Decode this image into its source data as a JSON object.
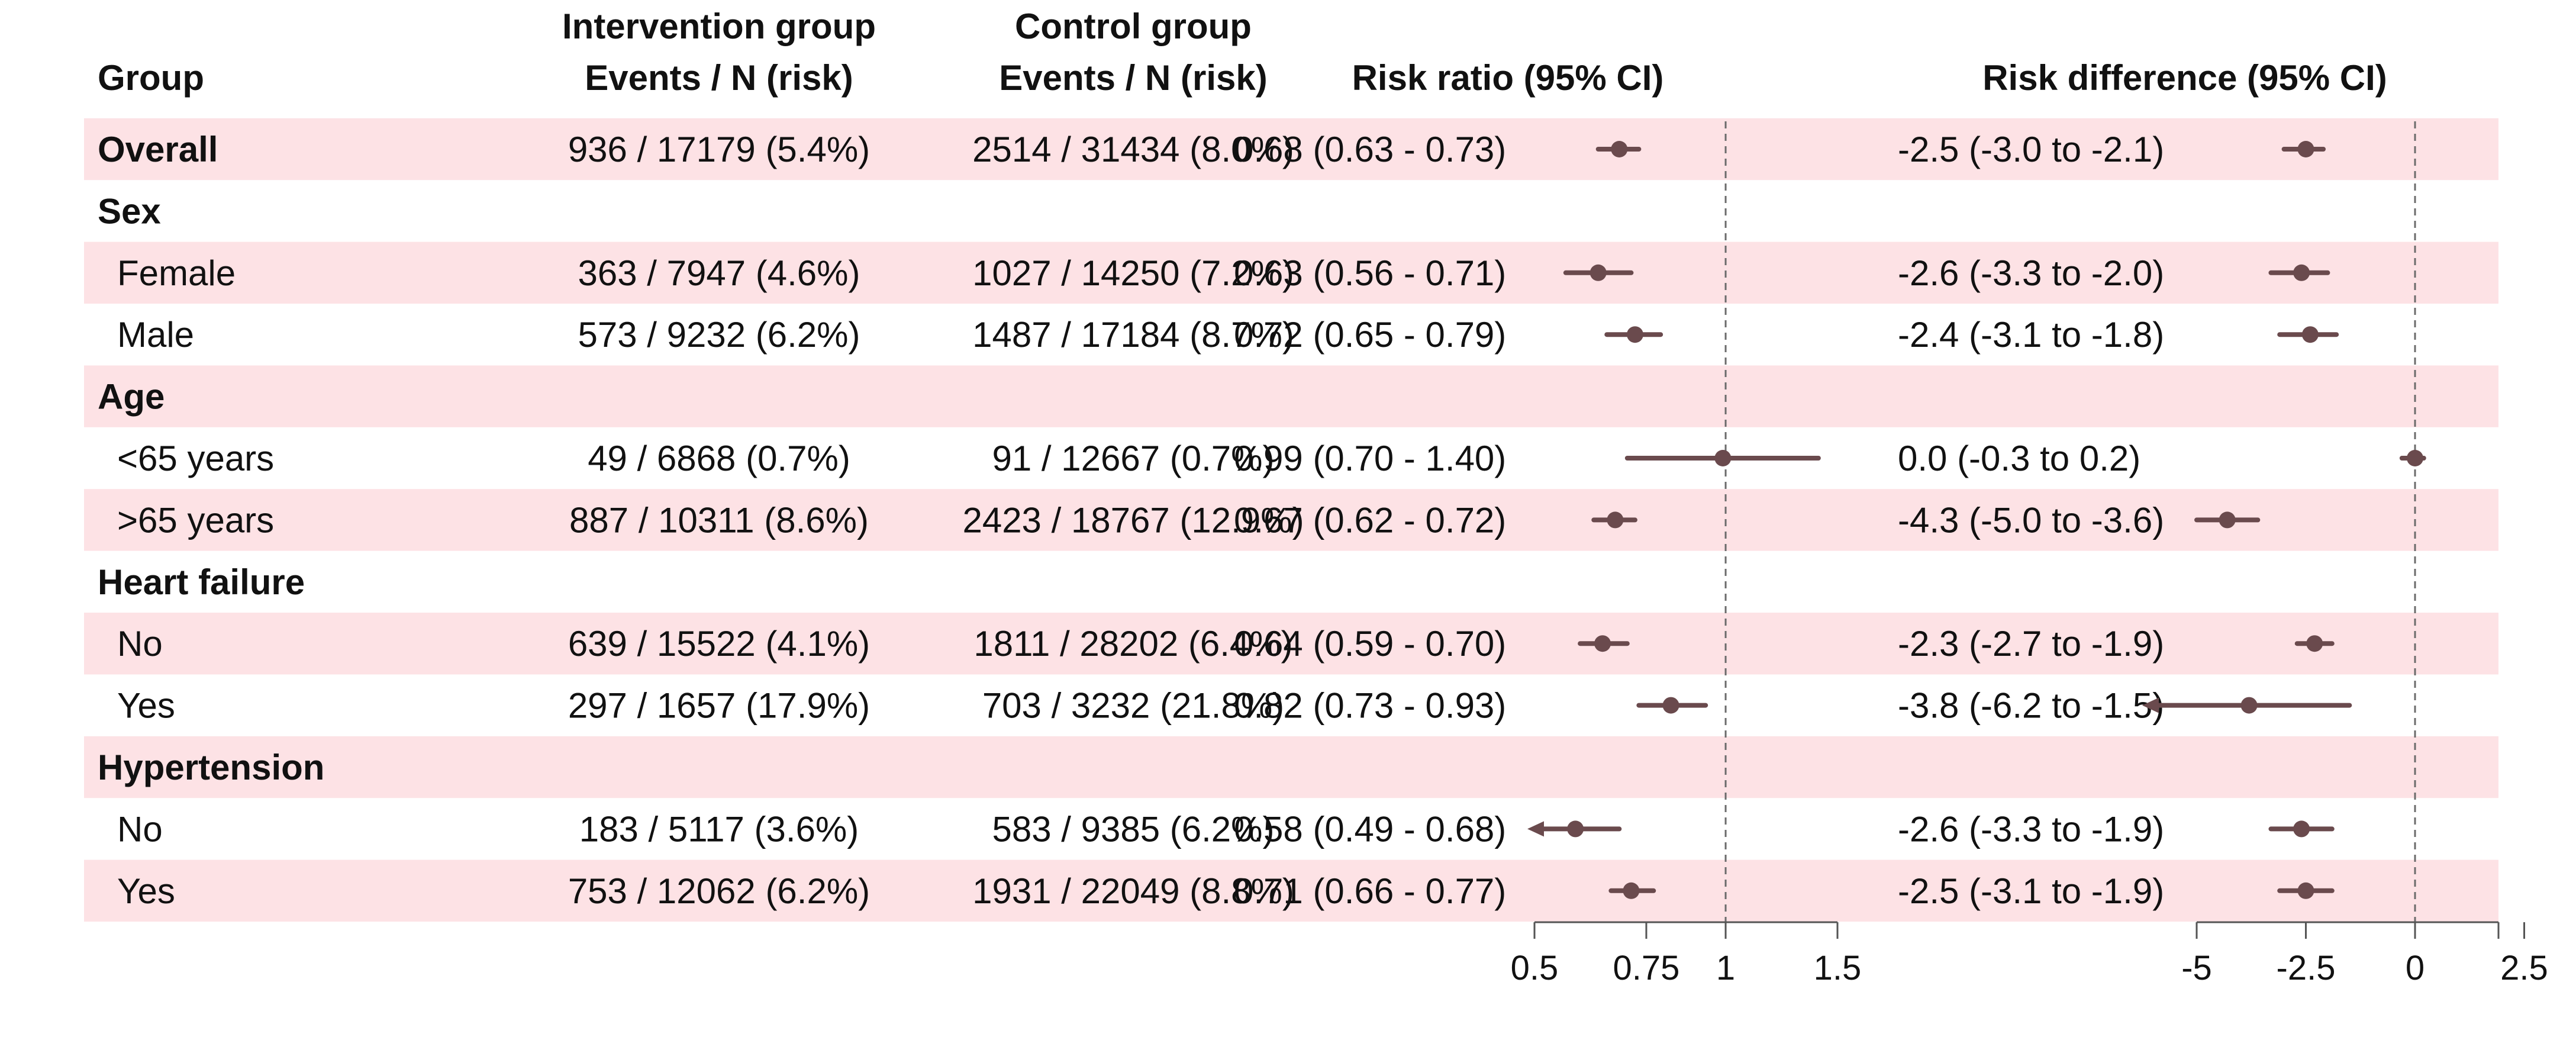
{
  "chart_data": {
    "type": "forest",
    "headers": {
      "group": "Group",
      "intervention_title": "Intervention group",
      "intervention_sub": "Events / N (risk)",
      "control_title": "Control group",
      "control_sub": "Events / N (risk)",
      "rr": "Risk ratio (95% CI)",
      "rd": "Risk difference (95% CI)"
    },
    "rows": [
      {
        "label": "Overall",
        "bold": true,
        "indent": false,
        "shaded": true,
        "intervention": "936 / 17179 (5.4%)",
        "control": "2514 / 31434 (8.0%)",
        "rr_text": "0.68 (0.63 - 0.73)",
        "rr": [
          0.68,
          0.63,
          0.73
        ],
        "rd_text": "-2.5 (-3.0 to -2.1)",
        "rd": [
          -2.5,
          -3.0,
          -2.1
        ]
      },
      {
        "label": "Sex",
        "bold": true,
        "indent": false,
        "shaded": false
      },
      {
        "label": "Female",
        "bold": false,
        "indent": true,
        "shaded": true,
        "intervention": "363 / 7947 (4.6%)",
        "control": "1027 / 14250 (7.2%)",
        "rr_text": "0.63 (0.56 - 0.71)",
        "rr": [
          0.63,
          0.56,
          0.71
        ],
        "rd_text": "-2.6 (-3.3 to -2.0)",
        "rd": [
          -2.6,
          -3.3,
          -2.0
        ]
      },
      {
        "label": "Male",
        "bold": false,
        "indent": true,
        "shaded": false,
        "intervention": "573 / 9232 (6.2%)",
        "control": "1487 / 17184 (8.7%)",
        "rr_text": "0.72 (0.65 - 0.79)",
        "rr": [
          0.72,
          0.65,
          0.79
        ],
        "rd_text": "-2.4 (-3.1 to -1.8)",
        "rd": [
          -2.4,
          -3.1,
          -1.8
        ]
      },
      {
        "label": "Age",
        "bold": true,
        "indent": false,
        "shaded": true
      },
      {
        "label": "<65 years",
        "bold": false,
        "indent": true,
        "shaded": false,
        "intervention": "49 / 6868 (0.7%)",
        "control": "91 / 12667 (0.7%)",
        "rr_text": "0.99 (0.70 - 1.40)",
        "rr": [
          0.99,
          0.7,
          1.4
        ],
        "rd_text": "0.0 (-0.3 to 0.2)",
        "rd": [
          0.0,
          -0.3,
          0.2
        ]
      },
      {
        "label": ">65 years",
        "bold": false,
        "indent": true,
        "shaded": true,
        "intervention": "887 / 10311 (8.6%)",
        "control": "2423 / 18767 (12.9%)",
        "rr_text": "0.67 (0.62 - 0.72)",
        "rr": [
          0.67,
          0.62,
          0.72
        ],
        "rd_text": "-4.3 (-5.0 to -3.6)",
        "rd": [
          -4.3,
          -5.0,
          -3.6
        ]
      },
      {
        "label": "Heart failure",
        "bold": true,
        "indent": false,
        "shaded": false
      },
      {
        "label": "No",
        "bold": false,
        "indent": true,
        "shaded": true,
        "intervention": "639 / 15522 (4.1%)",
        "control": "1811 / 28202 (6.4%)",
        "rr_text": "0.64 (0.59 - 0.70)",
        "rr": [
          0.64,
          0.59,
          0.7
        ],
        "rd_text": "-2.3 (-2.7 to -1.9)",
        "rd": [
          -2.3,
          -2.7,
          -1.9
        ]
      },
      {
        "label": "Yes",
        "bold": false,
        "indent": true,
        "shaded": false,
        "intervention": "297 / 1657 (17.9%)",
        "control": "703 / 3232 (21.8%)",
        "rr_text": "0.82 (0.73 - 0.93)",
        "rr": [
          0.82,
          0.73,
          0.93
        ],
        "rd_text": "-3.8 (-6.2 to -1.5)",
        "rd": [
          -3.8,
          -6.2,
          -1.5
        ]
      },
      {
        "label": "Hypertension",
        "bold": true,
        "indent": false,
        "shaded": true
      },
      {
        "label": "No",
        "bold": false,
        "indent": true,
        "shaded": false,
        "intervention": "183 / 5117 (3.6%)",
        "control": "583 / 9385 (6.2%)",
        "rr_text": "0.58 (0.49 - 0.68)",
        "rr": [
          0.58,
          0.49,
          0.68
        ],
        "rd_text": "-2.6 (-3.3 to -1.9)",
        "rd": [
          -2.6,
          -3.3,
          -1.9
        ]
      },
      {
        "label": "Yes",
        "bold": false,
        "indent": true,
        "shaded": true,
        "intervention": "753 / 12062 (6.2%)",
        "control": "1931 / 22049 (8.8%)",
        "rr_text": "0.71 (0.66 - 0.77)",
        "rr": [
          0.71,
          0.66,
          0.77
        ],
        "rd_text": "-2.5 (-3.1 to -1.9)",
        "rd": [
          -2.5,
          -3.1,
          -1.9
        ]
      }
    ],
    "rr_axis": {
      "ticks": [
        0.5,
        0.75,
        1,
        1.5
      ],
      "tick_labels": [
        "0.5",
        "0.75",
        "1",
        "1.5"
      ],
      "range": [
        0.5,
        1.5
      ],
      "scale": "log",
      "reference": 1
    },
    "rd_axis": {
      "ticks": [
        -5,
        -2.5,
        0,
        2.5
      ],
      "tick_labels": [
        "-5",
        "-2.5",
        "0",
        "2.5"
      ],
      "range": [
        -6,
        2.5
      ],
      "scale": "linear",
      "reference": 0
    },
    "colors": {
      "shade": "#fde2e5",
      "marker": "#6a4a4d",
      "axis": "#555555",
      "reference_line": "#6b6b6b"
    }
  }
}
